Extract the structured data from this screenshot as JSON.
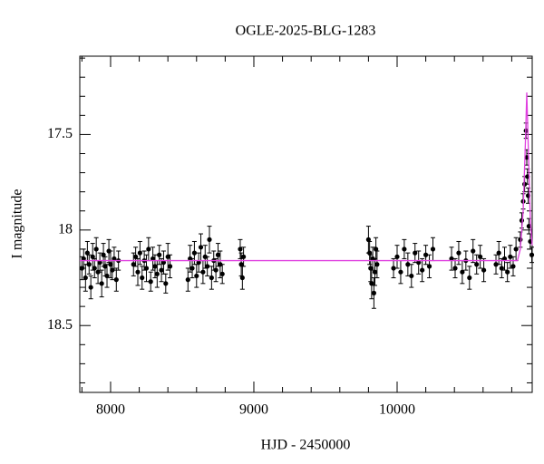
{
  "chart_data": {
    "type": "scatter",
    "title": "OGLE-2025-BLG-1283",
    "xlabel": "HJD - 2450000",
    "ylabel": "I magnitude",
    "xlim": [
      7785,
      10943
    ],
    "ylim": [
      18.85,
      17.09
    ],
    "xticks": [
      8000,
      9000,
      10000
    ],
    "yticks": [
      17.5,
      18,
      18.5
    ],
    "xminorticks": [
      7800,
      8200,
      8400,
      8600,
      8800,
      9200,
      9400,
      9600,
      9800,
      10200,
      10400,
      10600,
      10800
    ],
    "yminorticks": [
      17.1,
      17.2,
      17.3,
      17.4,
      17.6,
      17.7,
      17.8,
      17.9,
      18.1,
      18.2,
      18.3,
      18.4,
      18.6,
      18.7,
      18.8
    ],
    "series": [
      {
        "type": "errorbar",
        "color": "#000000",
        "x": [
          7800,
          7812,
          7825,
          7838,
          7850,
          7862,
          7875,
          7888,
          7900,
          7912,
          7925,
          7938,
          7950,
          7962,
          7975,
          7988,
          8000,
          8012,
          8025,
          8040,
          8055,
          8160,
          8175,
          8190,
          8205,
          8220,
          8235,
          8250,
          8265,
          8280,
          8295,
          8310,
          8325,
          8340,
          8355,
          8370,
          8385,
          8400,
          8415,
          8540,
          8555,
          8570,
          8585,
          8600,
          8615,
          8630,
          8645,
          8660,
          8675,
          8690,
          8705,
          8720,
          8735,
          8750,
          8765,
          8780,
          8905,
          8912,
          8920,
          8928,
          9800,
          9808,
          9815,
          9822,
          9830,
          9838,
          9845,
          9852,
          9860,
          9975,
          10000,
          10025,
          10050,
          10075,
          10100,
          10125,
          10150,
          10175,
          10200,
          10225,
          10250,
          10380,
          10405,
          10430,
          10455,
          10480,
          10505,
          10530,
          10555,
          10580,
          10605,
          10690,
          10710,
          10730,
          10750,
          10770,
          10790,
          10810,
          10830,
          10860,
          10870,
          10880,
          10890,
          10900,
          10905,
          10910,
          10915,
          10920,
          10930,
          10940
        ],
        "values": [
          18.2,
          18.15,
          18.25,
          18.12,
          18.18,
          18.3,
          18.14,
          18.2,
          18.1,
          18.22,
          18.17,
          18.28,
          18.13,
          18.19,
          18.24,
          18.11,
          18.18,
          18.21,
          18.15,
          18.26,
          18.16,
          18.18,
          18.14,
          18.22,
          18.12,
          18.25,
          18.16,
          18.2,
          18.1,
          18.27,
          18.15,
          18.19,
          18.23,
          18.13,
          18.21,
          18.17,
          18.28,
          18.14,
          18.19,
          18.26,
          18.15,
          18.2,
          18.12,
          18.24,
          18.17,
          18.09,
          18.22,
          18.14,
          18.19,
          18.05,
          18.25,
          18.16,
          18.21,
          18.13,
          18.18,
          18.23,
          18.1,
          18.18,
          18.25,
          18.14,
          18.05,
          18.12,
          18.2,
          18.28,
          18.15,
          18.33,
          18.22,
          18.1,
          18.18,
          18.2,
          18.14,
          18.22,
          18.1,
          18.18,
          18.24,
          18.12,
          18.17,
          18.21,
          18.13,
          18.19,
          18.1,
          18.15,
          18.2,
          18.12,
          18.22,
          18.16,
          18.25,
          18.11,
          18.18,
          18.14,
          18.21,
          18.18,
          18.12,
          18.2,
          18.15,
          18.22,
          18.14,
          18.19,
          18.1,
          18.05,
          17.95,
          17.85,
          17.76,
          17.48,
          17.62,
          17.72,
          17.82,
          17.98,
          18.06,
          18.13
        ],
        "errors": [
          0.06,
          0.05,
          0.07,
          0.06,
          0.05,
          0.06,
          0.07,
          0.05,
          0.06,
          0.06,
          0.05,
          0.07,
          0.06,
          0.05,
          0.06,
          0.06,
          0.07,
          0.05,
          0.06,
          0.06,
          0.05,
          0.06,
          0.05,
          0.07,
          0.06,
          0.06,
          0.05,
          0.07,
          0.06,
          0.05,
          0.06,
          0.06,
          0.07,
          0.05,
          0.06,
          0.06,
          0.05,
          0.07,
          0.06,
          0.06,
          0.07,
          0.05,
          0.06,
          0.06,
          0.05,
          0.07,
          0.06,
          0.06,
          0.05,
          0.07,
          0.06,
          0.05,
          0.06,
          0.06,
          0.07,
          0.05,
          0.05,
          0.06,
          0.06,
          0.05,
          0.07,
          0.06,
          0.07,
          0.08,
          0.06,
          0.08,
          0.07,
          0.06,
          0.07,
          0.05,
          0.06,
          0.06,
          0.05,
          0.06,
          0.06,
          0.05,
          0.06,
          0.06,
          0.05,
          0.06,
          0.06,
          0.06,
          0.05,
          0.06,
          0.06,
          0.05,
          0.06,
          0.06,
          0.05,
          0.06,
          0.06,
          0.05,
          0.06,
          0.05,
          0.06,
          0.05,
          0.06,
          0.05,
          0.06,
          0.04,
          0.04,
          0.04,
          0.04,
          0.04,
          0.04,
          0.04,
          0.04,
          0.04,
          0.04,
          0.04
        ]
      },
      {
        "type": "line",
        "color": "#e040e0",
        "x": [
          7785,
          10840,
          10860,
          10880,
          10895,
          10905,
          10915,
          10930,
          10943
        ],
        "values": [
          18.16,
          18.16,
          18.1,
          17.9,
          17.55,
          17.28,
          17.55,
          17.95,
          18.08
        ]
      }
    ]
  }
}
